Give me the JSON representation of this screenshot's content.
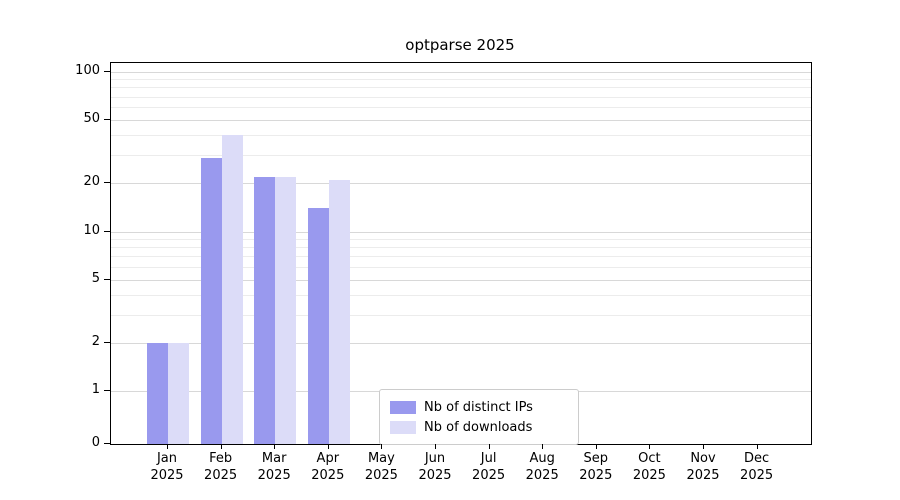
{
  "title": "optparse 2025",
  "chart_data": {
    "type": "bar",
    "title": "optparse 2025",
    "categories": [
      {
        "month": "Jan",
        "year": "2025"
      },
      {
        "month": "Feb",
        "year": "2025"
      },
      {
        "month": "Mar",
        "year": "2025"
      },
      {
        "month": "Apr",
        "year": "2025"
      },
      {
        "month": "May",
        "year": "2025"
      },
      {
        "month": "Jun",
        "year": "2025"
      },
      {
        "month": "Jul",
        "year": "2025"
      },
      {
        "month": "Aug",
        "year": "2025"
      },
      {
        "month": "Sep",
        "year": "2025"
      },
      {
        "month": "Oct",
        "year": "2025"
      },
      {
        "month": "Nov",
        "year": "2025"
      },
      {
        "month": "Dec",
        "year": "2025"
      }
    ],
    "series": [
      {
        "name": "Nb of distinct IPs",
        "color": "#9999ee",
        "values": [
          2,
          29,
          22,
          14,
          0,
          0,
          0,
          0,
          0,
          0,
          0,
          0
        ]
      },
      {
        "name": "Nb of downloads",
        "color": "#dcdcf8",
        "values": [
          2,
          40,
          22,
          21,
          0,
          0,
          0,
          0,
          0,
          0,
          0,
          0
        ]
      }
    ],
    "yscale": "symlog",
    "yticks": [
      0,
      1,
      2,
      5,
      10,
      20,
      50,
      100
    ],
    "minor_yticks": [
      3,
      4,
      6,
      7,
      8,
      9,
      30,
      40,
      60,
      70,
      80,
      90
    ],
    "ylim": [
      0,
      115
    ],
    "xlabel": "",
    "ylabel": "",
    "grid": "horizontal",
    "legend_position": "lower center"
  },
  "legend": {
    "items": [
      {
        "label": "Nb of distinct IPs"
      },
      {
        "label": "Nb of downloads"
      }
    ]
  },
  "colors": {
    "spine": "#000000",
    "grid_major": "#d8d8d8",
    "grid_minor": "#ececec",
    "legend_border": "#cccccc"
  }
}
